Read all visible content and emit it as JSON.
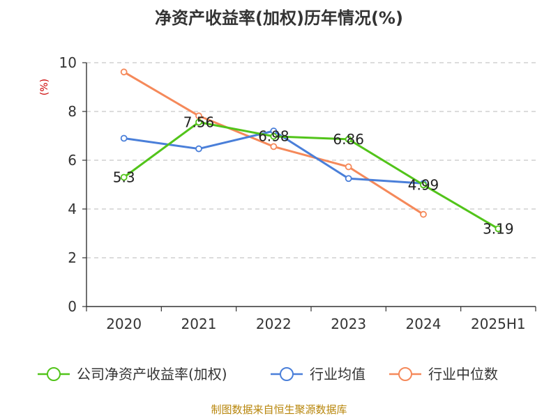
{
  "title": "净资产收益率(加权)历年情况(%)",
  "source_note": "制图数据来自恒生聚源数据库",
  "colors": {
    "company": "#52c41a",
    "industry_avg": "#4a7fd9",
    "industry_median": "#f5895a",
    "unit": "#cc0000",
    "source": "#b8860b"
  },
  "chart_data": {
    "type": "line",
    "title": "净资产收益率(加权)历年情况(%)",
    "ylabel": "(%)",
    "xlabel": "",
    "categories": [
      "2020",
      "2021",
      "2022",
      "2023",
      "2024",
      "2025H1"
    ],
    "ylim": [
      0,
      10
    ],
    "yticks": [
      0,
      2,
      4,
      6,
      8,
      10
    ],
    "grid": "horizontal dashed",
    "legend_position": "bottom",
    "series": [
      {
        "name": "公司净资产收益率(加权)",
        "color_key": "company",
        "values": [
          5.3,
          7.56,
          6.98,
          6.86,
          4.99,
          3.19
        ],
        "labels": [
          "5.3",
          "7.56",
          "6.98",
          "6.86",
          "4.99",
          "3.19"
        ]
      },
      {
        "name": "行业均值",
        "color_key": "industry_avg",
        "values": [
          6.9,
          6.47,
          7.2,
          5.25,
          5.05,
          null
        ]
      },
      {
        "name": "行业中位数",
        "color_key": "industry_median",
        "values": [
          9.62,
          7.82,
          6.56,
          5.73,
          3.78,
          null
        ]
      }
    ]
  }
}
